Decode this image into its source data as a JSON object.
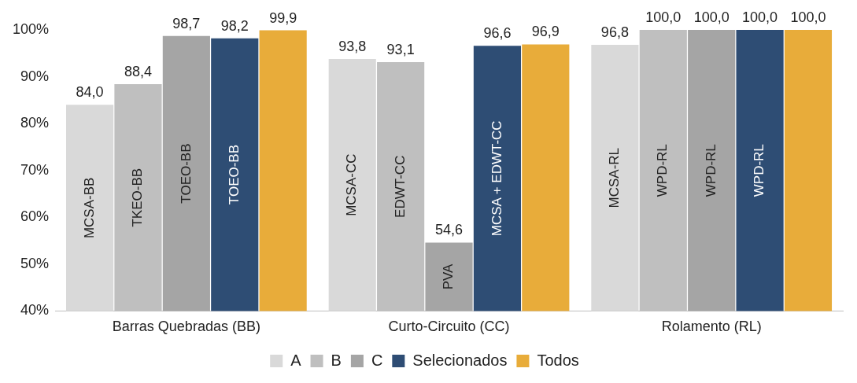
{
  "chart_data": {
    "type": "bar",
    "categories": [
      "Barras Quebradas (BB)",
      "Curto-Circuito (CC)",
      "Rolamento (RL)"
    ],
    "series": [
      {
        "name": "A",
        "color": "#d9d9d9",
        "values": [
          84.0,
          93.8,
          96.8
        ],
        "value_labels": [
          "84,0",
          "93,8",
          "96,8"
        ]
      },
      {
        "name": "B",
        "color": "#bfbfbf",
        "values": [
          88.4,
          93.1,
          100.0
        ],
        "value_labels": [
          "88,4",
          "93,1",
          "100,0"
        ]
      },
      {
        "name": "C",
        "color": "#a5a5a5",
        "values": [
          98.7,
          54.6,
          100.0
        ],
        "value_labels": [
          "98,7",
          "54,6",
          "100,0"
        ]
      },
      {
        "name": "Selecionados",
        "color": "#2e4d74",
        "values": [
          98.2,
          96.6,
          100.0
        ],
        "value_labels": [
          "98,2",
          "96,6",
          "100,0"
        ]
      },
      {
        "name": "Todos",
        "color": "#e8ac3a",
        "values": [
          99.9,
          96.9,
          100.0
        ],
        "value_labels": [
          "99,9",
          "96,9",
          "100,0"
        ]
      }
    ],
    "ylim": [
      40,
      100
    ],
    "yticks": [
      {
        "value": 40,
        "label": "40%"
      },
      {
        "value": 50,
        "label": "50%"
      },
      {
        "value": 60,
        "label": "60%"
      },
      {
        "value": 70,
        "label": "70%"
      },
      {
        "value": 80,
        "label": "80%"
      },
      {
        "value": 90,
        "label": "90%"
      },
      {
        "value": 100,
        "label": "100%"
      }
    ],
    "grid": false,
    "legend": "bottom",
    "annotations": [
      "MCSA-BB",
      "TKEO-BB",
      "TOEO-BB",
      "TOEO-BB",
      "MCSA-CC",
      "EDWT-CC",
      "PVA",
      "MCSA + EDWT-CC",
      "MCSA-RL",
      "WPD-RL",
      "WPD-RL",
      "WPD-RL"
    ]
  }
}
